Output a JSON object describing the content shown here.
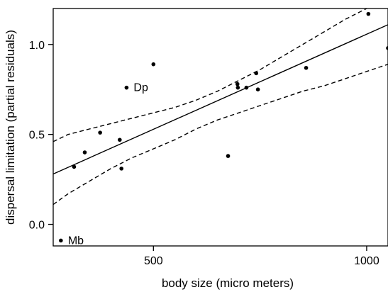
{
  "chart_data": {
    "type": "scatter",
    "title": "",
    "xlabel": "body size (micro meters)",
    "ylabel": "dispersal limitation (partial residuals)",
    "xlim": [
      265,
      1050
    ],
    "ylim": [
      -0.12,
      1.2
    ],
    "x_ticks": [
      {
        "value": 500,
        "label": "500"
      },
      {
        "value": 1000,
        "label": "1000"
      }
    ],
    "y_ticks": [
      {
        "value": 0.0,
        "label": "0.0"
      },
      {
        "value": 0.5,
        "label": "0.5"
      },
      {
        "value": 1.0,
        "label": "1.0"
      }
    ],
    "grid": false,
    "points": [
      {
        "x": 283,
        "y": -0.09
      },
      {
        "x": 314,
        "y": 0.32
      },
      {
        "x": 339,
        "y": 0.4
      },
      {
        "x": 375,
        "y": 0.51
      },
      {
        "x": 421,
        "y": 0.47
      },
      {
        "x": 425,
        "y": 0.31
      },
      {
        "x": 437,
        "y": 0.76
      },
      {
        "x": 500,
        "y": 0.89
      },
      {
        "x": 675,
        "y": 0.38
      },
      {
        "x": 697,
        "y": 0.78
      },
      {
        "x": 698,
        "y": 0.76
      },
      {
        "x": 718,
        "y": 0.76
      },
      {
        "x": 741,
        "y": 0.84
      },
      {
        "x": 745,
        "y": 0.75
      },
      {
        "x": 858,
        "y": 0.87
      },
      {
        "x": 1004,
        "y": 1.17
      },
      {
        "x": 1050,
        "y": 0.98
      }
    ],
    "annotations": [
      {
        "text": "Dp",
        "x": 437,
        "y": 0.76
      },
      {
        "text": "Mb",
        "x": 283,
        "y": -0.09
      }
    ],
    "fit_line": {
      "x": [
        265,
        1050
      ],
      "y": [
        0.28,
        1.11
      ]
    },
    "confidence_band": {
      "upper": {
        "x": [
          265,
          300,
          350,
          400,
          450,
          500,
          550,
          600,
          650,
          700,
          750,
          800,
          850,
          900,
          950,
          1000,
          1050
        ],
        "y": [
          0.46,
          0.5,
          0.53,
          0.56,
          0.59,
          0.62,
          0.65,
          0.69,
          0.74,
          0.8,
          0.86,
          0.93,
          1.0,
          1.07,
          1.14,
          1.2,
          1.26
        ]
      },
      "lower": {
        "x": [
          265,
          300,
          350,
          400,
          450,
          500,
          550,
          600,
          650,
          700,
          750,
          800,
          850,
          900,
          950,
          1000,
          1050
        ],
        "y": [
          0.11,
          0.17,
          0.24,
          0.31,
          0.37,
          0.42,
          0.47,
          0.53,
          0.58,
          0.62,
          0.66,
          0.7,
          0.74,
          0.77,
          0.81,
          0.85,
          0.89
        ]
      }
    }
  }
}
